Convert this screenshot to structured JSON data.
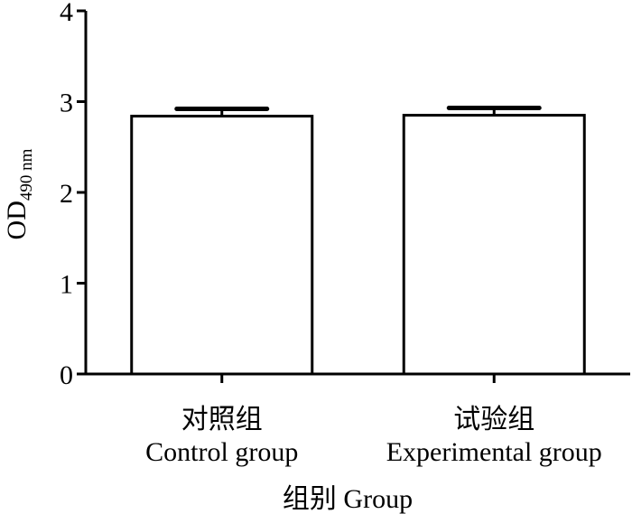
{
  "chart_data": {
    "type": "bar",
    "y_label": "OD",
    "y_label_subscript": "490 nm",
    "x_label": "组别  Group",
    "categories": [
      [
        "对照组",
        "Control group"
      ],
      [
        "试验组",
        "Experimental group"
      ]
    ],
    "values": [
      2.84,
      2.85
    ],
    "errors": [
      0.08,
      0.08
    ],
    "color": "#ffffff",
    "ylim": [
      0,
      4
    ],
    "yticks": [
      0,
      1,
      2,
      3,
      4
    ]
  }
}
